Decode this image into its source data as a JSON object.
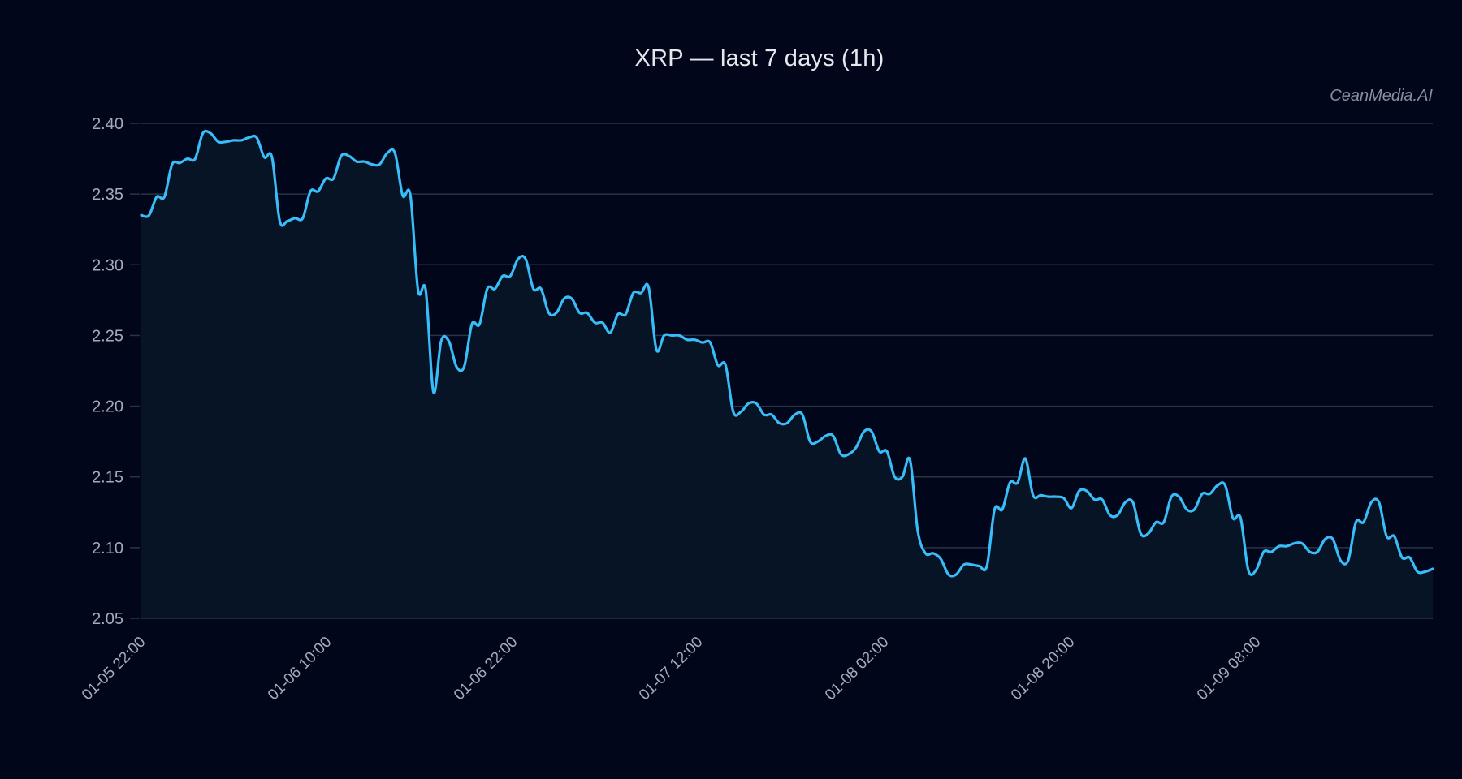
{
  "chart_data": {
    "type": "area",
    "title": "XRP — last 7 days (1h)",
    "watermark": "CeanMedia.AI",
    "xlabel": "",
    "ylabel": "",
    "ylim": [
      2.05,
      2.4
    ],
    "yticks": [
      "2.05",
      "2.10",
      "2.15",
      "2.20",
      "2.25",
      "2.30",
      "2.35",
      "2.40"
    ],
    "xticks": [
      "01-05 22:00",
      "01-06 10:00",
      "01-06 22:00",
      "01-07 12:00",
      "01-08 02:00",
      "01-08 20:00",
      "01-09 08:00"
    ],
    "grid": true,
    "legend": null,
    "line_color": "#38bdf8",
    "fill_color": "#071426",
    "background": "#02061a",
    "series": [
      {
        "name": "XRP",
        "interval": "1h",
        "values": [
          2.335,
          2.335,
          2.348,
          2.348,
          2.371,
          2.372,
          2.375,
          2.375,
          2.393,
          2.393,
          2.387,
          2.387,
          2.388,
          2.388,
          2.39,
          2.39,
          2.376,
          2.376,
          2.331,
          2.331,
          2.333,
          2.333,
          2.352,
          2.352,
          2.361,
          2.361,
          2.377,
          2.377,
          2.373,
          2.373,
          2.371,
          2.371,
          2.379,
          2.379,
          2.349,
          2.349,
          2.282,
          2.282,
          2.21,
          2.246,
          2.246,
          2.228,
          2.228,
          2.258,
          2.258,
          2.283,
          2.283,
          2.292,
          2.292,
          2.304,
          2.304,
          2.283,
          2.283,
          2.266,
          2.266,
          2.276,
          2.276,
          2.266,
          2.266,
          2.259,
          2.259,
          2.252,
          2.265,
          2.265,
          2.28,
          2.28,
          2.284,
          2.24,
          2.25,
          2.25,
          2.25,
          2.247,
          2.247,
          2.245,
          2.245,
          2.229,
          2.229,
          2.196,
          2.196,
          2.202,
          2.202,
          2.194,
          2.194,
          2.188,
          2.188,
          2.194,
          2.194,
          2.175,
          2.175,
          2.179,
          2.179,
          2.166,
          2.166,
          2.171,
          2.182,
          2.182,
          2.168,
          2.168,
          2.15,
          2.15,
          2.162,
          2.112,
          2.096,
          2.096,
          2.092,
          2.081,
          2.081,
          2.088,
          2.088,
          2.087,
          2.087,
          2.127,
          2.127,
          2.146,
          2.146,
          2.163,
          2.137,
          2.137,
          2.136,
          2.136,
          2.135,
          2.128,
          2.14,
          2.14,
          2.134,
          2.134,
          2.123,
          2.123,
          2.132,
          2.132,
          2.11,
          2.11,
          2.118,
          2.118,
          2.136,
          2.136,
          2.127,
          2.127,
          2.138,
          2.138,
          2.144,
          2.144,
          2.121,
          2.121,
          2.084,
          2.084,
          2.097,
          2.097,
          2.101,
          2.101,
          2.103,
          2.103,
          2.097,
          2.097,
          2.106,
          2.106,
          2.091,
          2.091,
          2.118,
          2.118,
          2.132,
          2.132,
          2.108,
          2.108,
          2.093,
          2.093,
          2.083,
          2.083,
          2.085
        ]
      }
    ]
  }
}
